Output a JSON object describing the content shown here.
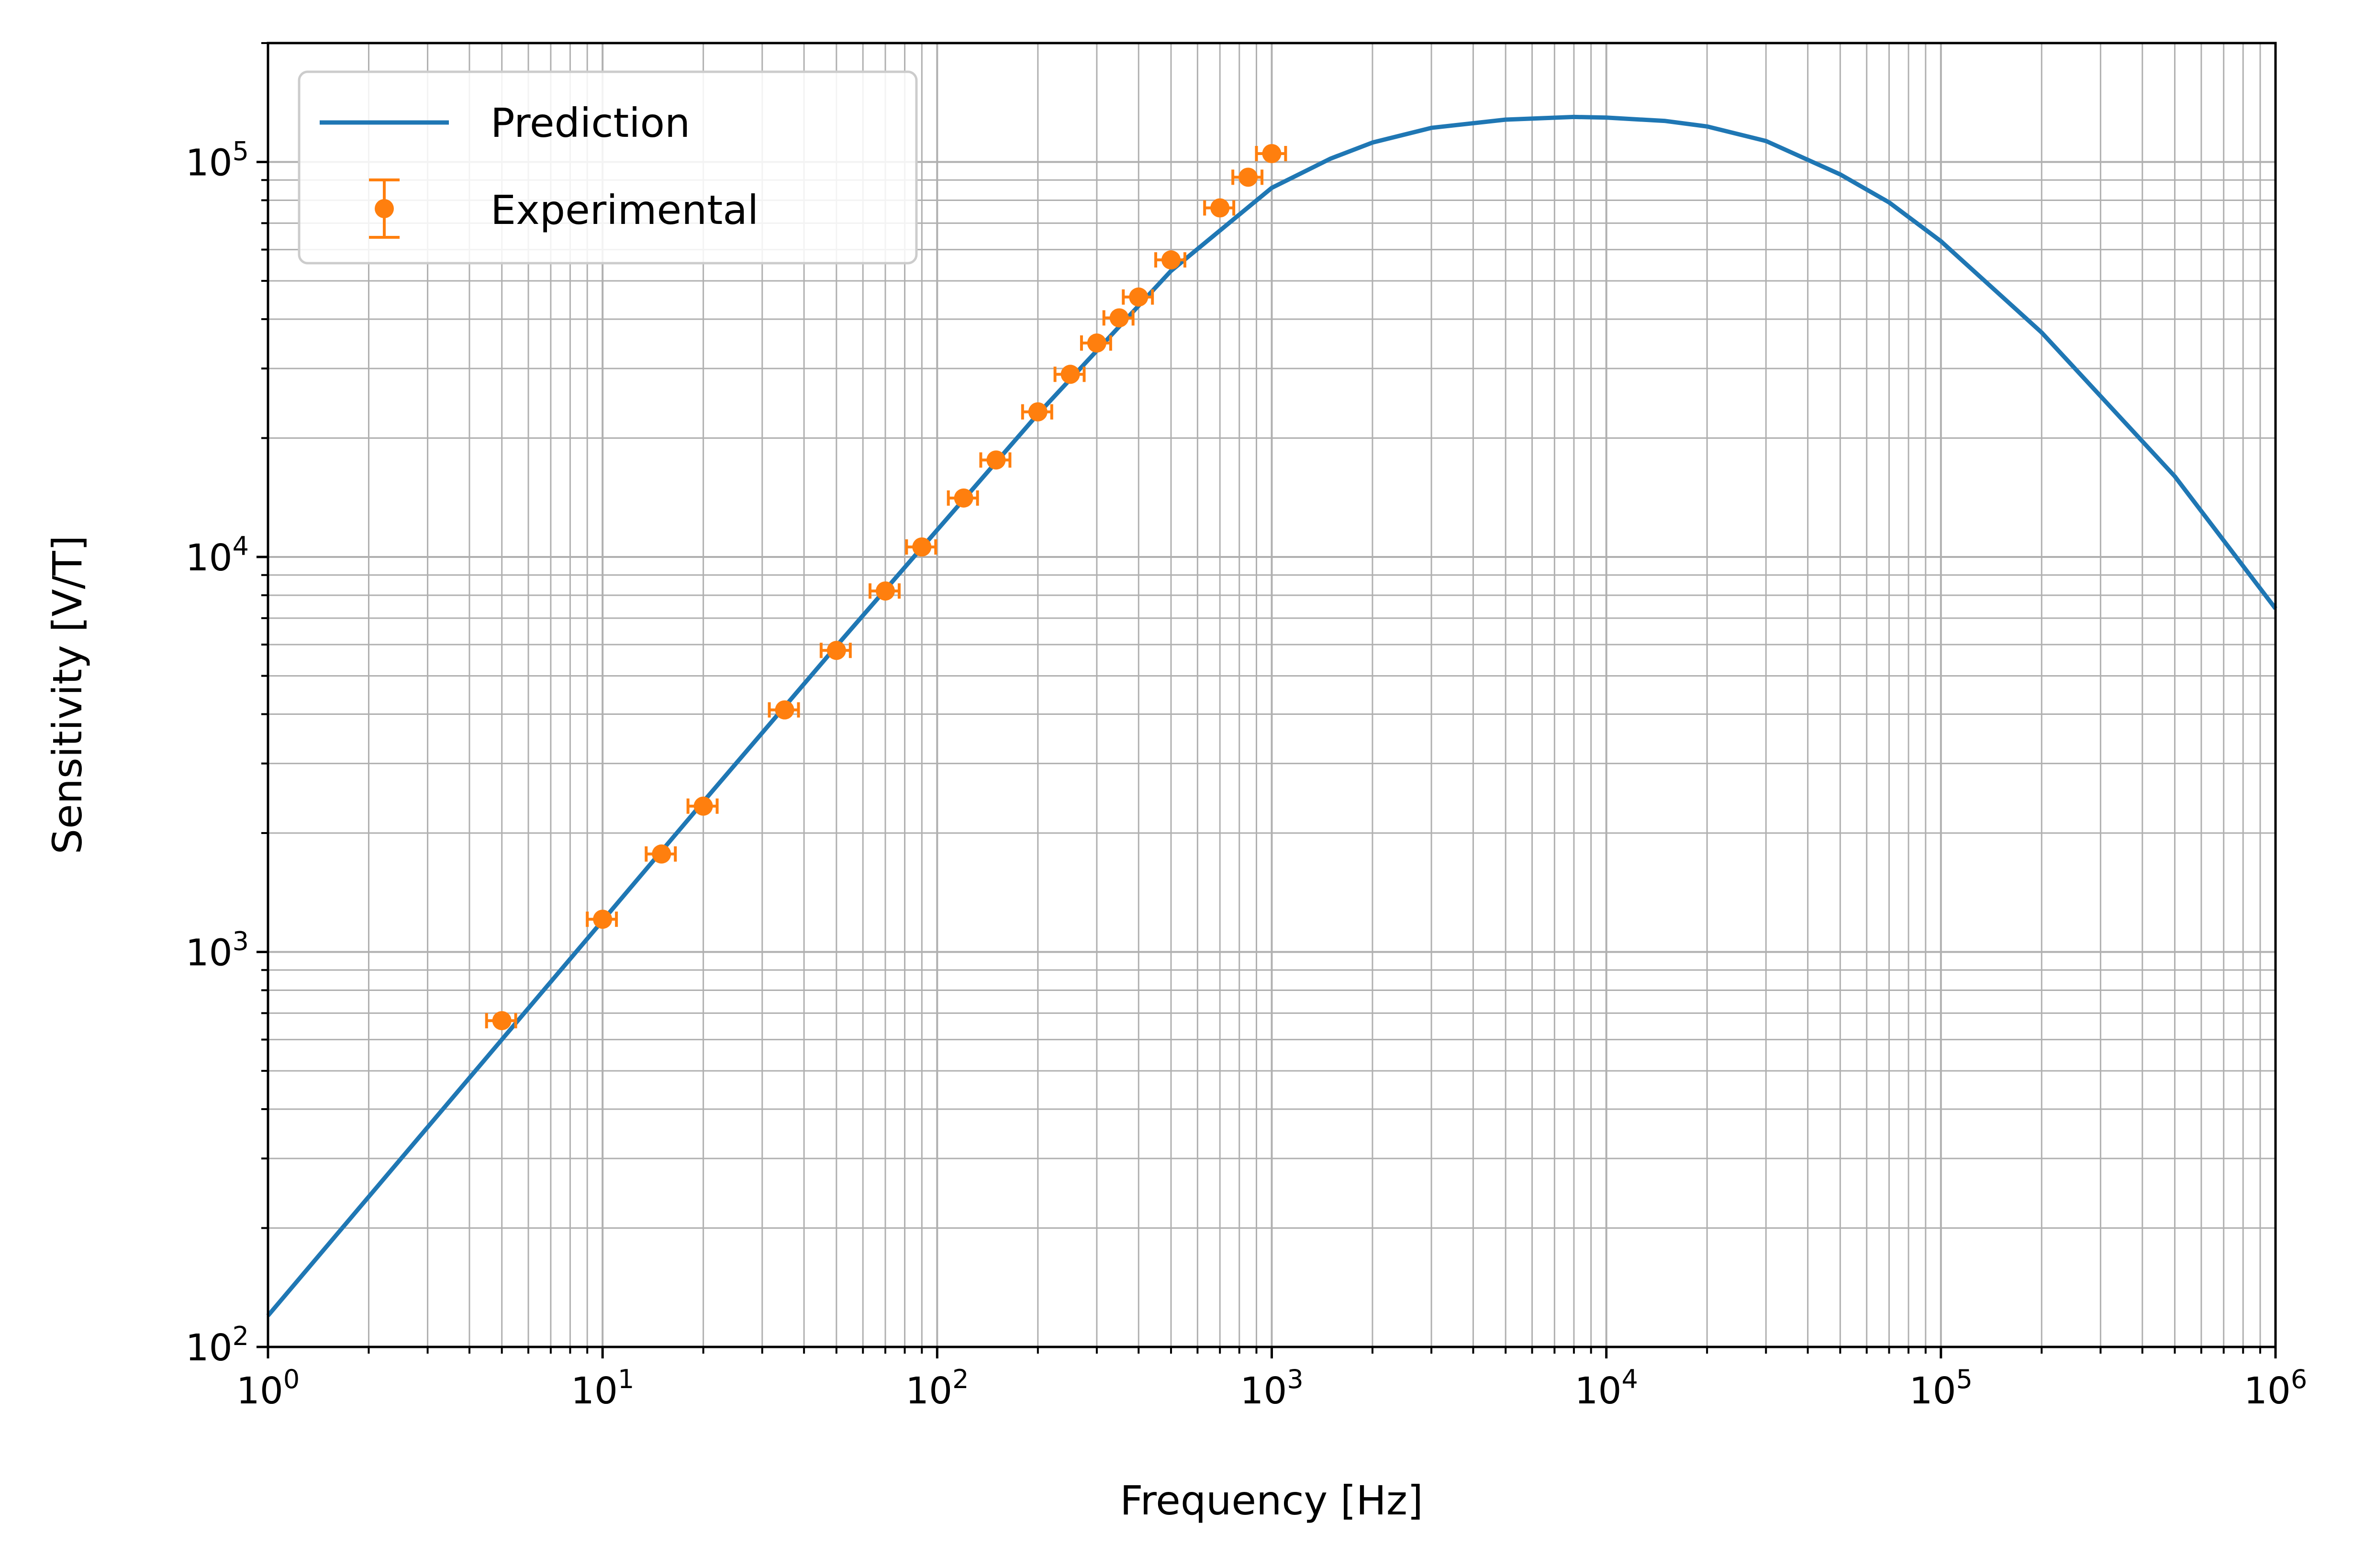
{
  "chart_data": {
    "type": "line",
    "title": "",
    "xlabel": "Frequency [Hz]",
    "ylabel": "Sensitivity [V/T]",
    "xscale": "log",
    "yscale": "log",
    "xlim": [
      1,
      1000000
    ],
    "ylim": [
      100,
      200000
    ],
    "grid": "both",
    "legend_position": "top-left",
    "x_tick_labels": [
      {
        "value": 1,
        "base": "10",
        "exp": "0"
      },
      {
        "value": 10,
        "base": "10",
        "exp": "1"
      },
      {
        "value": 100,
        "base": "10",
        "exp": "2"
      },
      {
        "value": 1000,
        "base": "10",
        "exp": "3"
      },
      {
        "value": 10000,
        "base": "10",
        "exp": "4"
      },
      {
        "value": 100000,
        "base": "10",
        "exp": "5"
      },
      {
        "value": 1000000,
        "base": "10",
        "exp": "6"
      }
    ],
    "y_tick_labels": [
      {
        "value": 100,
        "base": "10",
        "exp": "2"
      },
      {
        "value": 1000,
        "base": "10",
        "exp": "3"
      },
      {
        "value": 10000,
        "base": "10",
        "exp": "4"
      },
      {
        "value": 100000,
        "base": "10",
        "exp": "5"
      }
    ],
    "series": [
      {
        "name": "Prediction",
        "kind": "line",
        "color": "#1f77b4",
        "x": [
          1,
          2,
          5,
          10,
          20,
          50,
          100,
          200,
          500,
          1000,
          1500,
          2000,
          3000,
          5000,
          8000,
          10000,
          15000,
          20000,
          30000,
          50000,
          70000,
          100000,
          200000,
          500000,
          1000000
        ],
        "y": [
          120,
          240,
          600,
          1200,
          2400,
          5950,
          11700,
          23000,
          53000,
          86000,
          102000,
          112000,
          122000,
          128000,
          130000,
          129500,
          127000,
          123000,
          113000,
          93000,
          79000,
          63000,
          37000,
          16000,
          7400
        ]
      },
      {
        "name": "Experimental",
        "kind": "errorbar",
        "color": "#ff7f0e",
        "x": [
          5,
          10,
          15,
          20,
          35,
          50,
          70,
          90,
          120,
          150,
          200,
          250,
          300,
          350,
          400,
          500,
          700,
          850,
          1000
        ],
        "y": [
          670,
          1210,
          1770,
          2340,
          4100,
          5800,
          8200,
          10600,
          14100,
          17600,
          23300,
          29000,
          34800,
          40300,
          45500,
          56500,
          76500,
          91500,
          105000
        ],
        "xerr_fraction": 0.1
      }
    ]
  }
}
